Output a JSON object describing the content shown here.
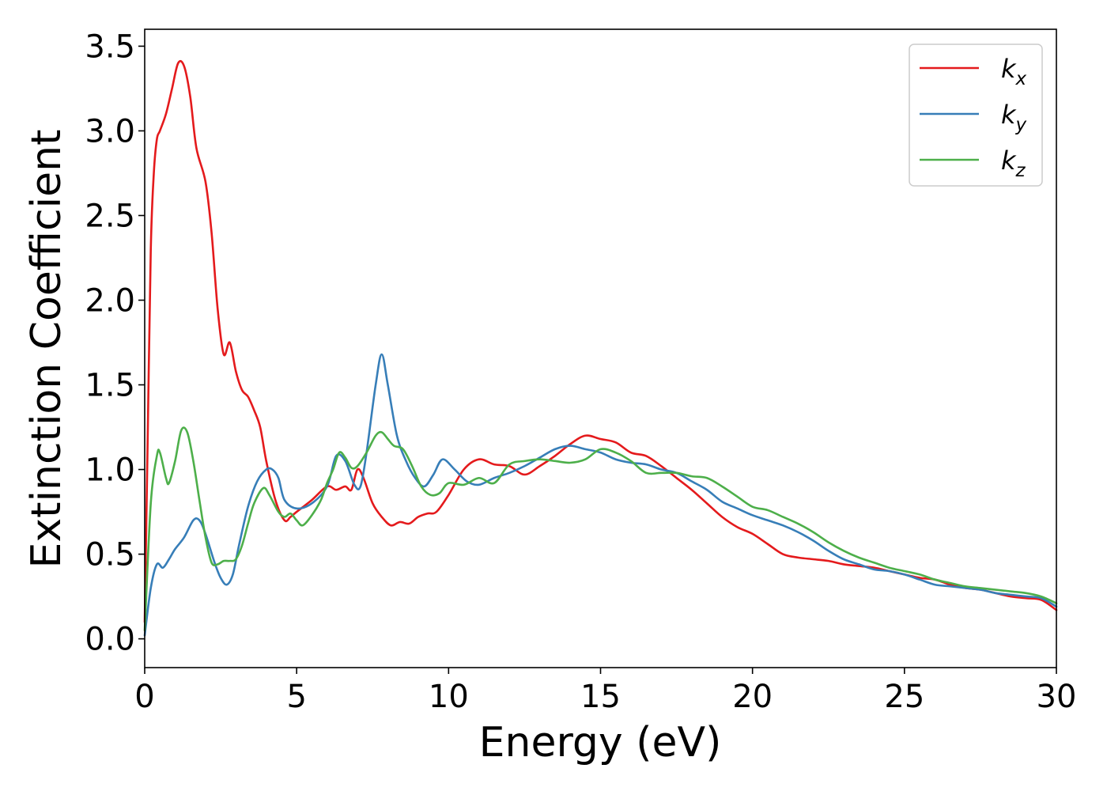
{
  "chart_data": {
    "type": "line",
    "title": "",
    "xlabel": "Energy (eV)",
    "ylabel": "Extinction Coefficient",
    "xlim": [
      0,
      30
    ],
    "ylim": [
      -0.17,
      3.6
    ],
    "xticks": [
      0,
      5,
      10,
      15,
      20,
      25,
      30
    ],
    "xtick_labels": [
      "0",
      "5",
      "10",
      "15",
      "20",
      "25",
      "30"
    ],
    "yticks": [
      0.0,
      0.5,
      1.0,
      1.5,
      2.0,
      2.5,
      3.0,
      3.5
    ],
    "ytick_labels": [
      "0.0",
      "0.5",
      "1.0",
      "1.5",
      "2.0",
      "2.5",
      "3.0",
      "3.5"
    ],
    "grid": false,
    "legend_position": "top-right",
    "series": [
      {
        "name": "k_x",
        "legend_main": "k",
        "legend_sub": "x",
        "color": "#e41a1c",
        "x": [
          0,
          0.1,
          0.2,
          0.3,
          0.4,
          0.5,
          0.7,
          0.9,
          1.1,
          1.3,
          1.5,
          1.7,
          2.0,
          2.2,
          2.4,
          2.6,
          2.8,
          3.0,
          3.2,
          3.4,
          3.6,
          3.8,
          4.0,
          4.3,
          4.6,
          4.8,
          5.0,
          5.5,
          6.0,
          6.3,
          6.6,
          6.8,
          7.0,
          7.2,
          7.5,
          7.8,
          8.1,
          8.4,
          8.7,
          9.0,
          9.3,
          9.6,
          10.0,
          10.5,
          11.0,
          11.5,
          12.0,
          12.5,
          13.0,
          13.5,
          14.0,
          14.5,
          15.0,
          15.5,
          16.0,
          16.5,
          17.0,
          17.5,
          18.0,
          18.5,
          19.0,
          19.5,
          20.0,
          20.5,
          21.0,
          21.5,
          22.0,
          22.5,
          23.0,
          23.5,
          24.0,
          24.5,
          25.0,
          25.5,
          26.0,
          26.5,
          27.0,
          27.5,
          28.0,
          28.5,
          29.0,
          29.5,
          30.0
        ],
        "y": [
          0.1,
          1.2,
          2.3,
          2.75,
          2.95,
          3.0,
          3.1,
          3.25,
          3.4,
          3.38,
          3.2,
          2.9,
          2.7,
          2.4,
          1.95,
          1.68,
          1.75,
          1.58,
          1.47,
          1.43,
          1.35,
          1.25,
          1.05,
          0.82,
          0.7,
          0.72,
          0.75,
          0.82,
          0.9,
          0.88,
          0.9,
          0.88,
          1.0,
          0.95,
          0.8,
          0.72,
          0.67,
          0.69,
          0.68,
          0.72,
          0.74,
          0.75,
          0.85,
          1.0,
          1.06,
          1.03,
          1.02,
          0.97,
          1.02,
          1.08,
          1.15,
          1.2,
          1.18,
          1.16,
          1.1,
          1.08,
          1.02,
          0.95,
          0.88,
          0.8,
          0.72,
          0.66,
          0.62,
          0.56,
          0.5,
          0.48,
          0.47,
          0.46,
          0.44,
          0.43,
          0.42,
          0.4,
          0.38,
          0.36,
          0.35,
          0.32,
          0.3,
          0.29,
          0.27,
          0.25,
          0.24,
          0.23,
          0.17
        ]
      },
      {
        "name": "k_y",
        "legend_main": "k",
        "legend_sub": "y",
        "color": "#377eb8",
        "x": [
          0,
          0.2,
          0.4,
          0.6,
          0.8,
          1.0,
          1.3,
          1.6,
          1.8,
          2.0,
          2.3,
          2.5,
          2.7,
          2.9,
          3.1,
          3.4,
          3.7,
          4.0,
          4.2,
          4.4,
          4.6,
          5.0,
          5.5,
          6.0,
          6.3,
          6.6,
          6.9,
          7.1,
          7.3,
          7.6,
          7.8,
          8.0,
          8.3,
          8.6,
          8.9,
          9.2,
          9.5,
          9.8,
          10.2,
          10.6,
          11.0,
          11.5,
          12.0,
          12.5,
          13.0,
          13.5,
          14.0,
          14.5,
          15.0,
          15.5,
          16.0,
          16.5,
          17.0,
          17.5,
          18.0,
          18.5,
          19.0,
          19.5,
          20.0,
          20.5,
          21.0,
          21.5,
          22.0,
          22.5,
          23.0,
          23.5,
          24.0,
          24.5,
          25.0,
          25.5,
          26.0,
          26.5,
          27.0,
          27.5,
          28.0,
          28.5,
          29.0,
          29.5,
          30.0
        ],
        "y": [
          0.02,
          0.3,
          0.44,
          0.42,
          0.47,
          0.53,
          0.6,
          0.7,
          0.7,
          0.62,
          0.45,
          0.36,
          0.32,
          0.38,
          0.55,
          0.78,
          0.93,
          1.0,
          1.0,
          0.95,
          0.82,
          0.77,
          0.8,
          0.9,
          1.08,
          1.05,
          0.91,
          0.9,
          1.1,
          1.5,
          1.68,
          1.5,
          1.2,
          1.05,
          0.95,
          0.9,
          0.97,
          1.06,
          1.0,
          0.93,
          0.91,
          0.95,
          0.98,
          1.02,
          1.07,
          1.12,
          1.14,
          1.12,
          1.1,
          1.06,
          1.04,
          1.03,
          1.0,
          0.98,
          0.93,
          0.88,
          0.81,
          0.77,
          0.73,
          0.7,
          0.67,
          0.63,
          0.58,
          0.52,
          0.47,
          0.44,
          0.41,
          0.4,
          0.38,
          0.35,
          0.32,
          0.31,
          0.3,
          0.29,
          0.27,
          0.26,
          0.25,
          0.24,
          0.19
        ]
      },
      {
        "name": "k_z",
        "legend_main": "k",
        "legend_sub": "z",
        "color": "#4daf4a",
        "x": [
          0,
          0.2,
          0.4,
          0.5,
          0.7,
          0.8,
          1.0,
          1.2,
          1.4,
          1.6,
          1.8,
          2.0,
          2.2,
          2.4,
          2.6,
          2.8,
          3.0,
          3.2,
          3.4,
          3.6,
          3.9,
          4.1,
          4.4,
          4.6,
          4.8,
          5.0,
          5.2,
          5.5,
          5.8,
          6.0,
          6.2,
          6.4,
          6.6,
          6.8,
          7.0,
          7.3,
          7.6,
          7.8,
          8.0,
          8.2,
          8.5,
          8.8,
          9.1,
          9.4,
          9.7,
          10.0,
          10.5,
          11.0,
          11.5,
          12.0,
          12.5,
          13.0,
          13.5,
          14.0,
          14.5,
          15.0,
          15.5,
          16.0,
          16.5,
          17.0,
          17.5,
          18.0,
          18.5,
          19.0,
          19.5,
          20.0,
          20.5,
          21.0,
          21.5,
          22.0,
          22.5,
          23.0,
          23.5,
          24.0,
          24.5,
          25.0,
          25.5,
          26.0,
          26.5,
          27.0,
          27.5,
          28.0,
          28.5,
          29.0,
          29.5,
          30.0
        ],
        "y": [
          0.05,
          0.8,
          1.08,
          1.1,
          0.95,
          0.92,
          1.05,
          1.23,
          1.22,
          1.05,
          0.82,
          0.6,
          0.45,
          0.44,
          0.46,
          0.46,
          0.47,
          0.55,
          0.68,
          0.8,
          0.89,
          0.85,
          0.75,
          0.72,
          0.74,
          0.7,
          0.67,
          0.73,
          0.82,
          0.92,
          1.0,
          1.1,
          1.07,
          1.01,
          1.02,
          1.1,
          1.2,
          1.22,
          1.18,
          1.14,
          1.12,
          1.02,
          0.9,
          0.85,
          0.86,
          0.92,
          0.91,
          0.95,
          0.92,
          1.03,
          1.05,
          1.06,
          1.05,
          1.04,
          1.06,
          1.12,
          1.1,
          1.05,
          0.98,
          0.98,
          0.98,
          0.96,
          0.95,
          0.9,
          0.84,
          0.78,
          0.76,
          0.72,
          0.68,
          0.63,
          0.57,
          0.52,
          0.48,
          0.45,
          0.42,
          0.4,
          0.38,
          0.35,
          0.33,
          0.31,
          0.3,
          0.29,
          0.28,
          0.27,
          0.25,
          0.21
        ]
      }
    ]
  }
}
